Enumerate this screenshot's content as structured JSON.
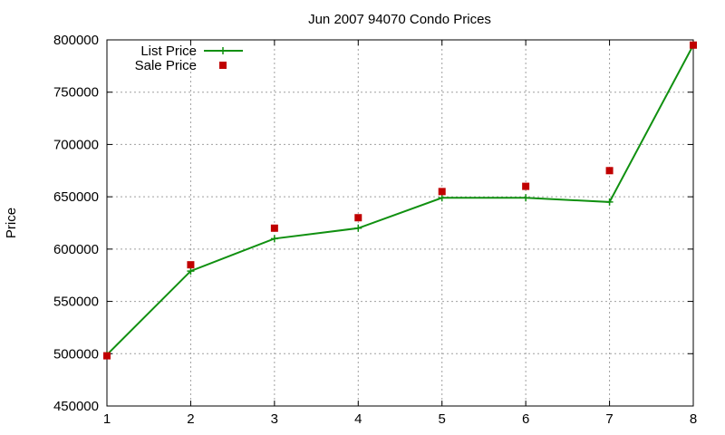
{
  "chart_data": {
    "type": "line",
    "title": "Jun 2007 94070 Condo Prices",
    "xlabel": "",
    "ylabel": "Price",
    "x": [
      1,
      2,
      3,
      4,
      5,
      6,
      7,
      8
    ],
    "xlim": [
      1,
      8
    ],
    "ylim": [
      450000,
      800000
    ],
    "x_ticks": [
      "1",
      "2",
      "3",
      "4",
      "5",
      "6",
      "7",
      "8"
    ],
    "y_ticks": [
      "450000",
      "500000",
      "550000",
      "600000",
      "650000",
      "700000",
      "750000",
      "800000"
    ],
    "grid": true,
    "legend_position": "top-left",
    "series": [
      {
        "name": "List Price",
        "style": "line-with-plus-markers",
        "color": "#109010",
        "values": [
          499000,
          579000,
          610000,
          620000,
          649000,
          649000,
          645000,
          795000
        ]
      },
      {
        "name": "Sale Price",
        "style": "square-points",
        "color": "#c00000",
        "values": [
          498000,
          585000,
          620000,
          630000,
          655000,
          660000,
          675000,
          795000
        ]
      }
    ]
  }
}
